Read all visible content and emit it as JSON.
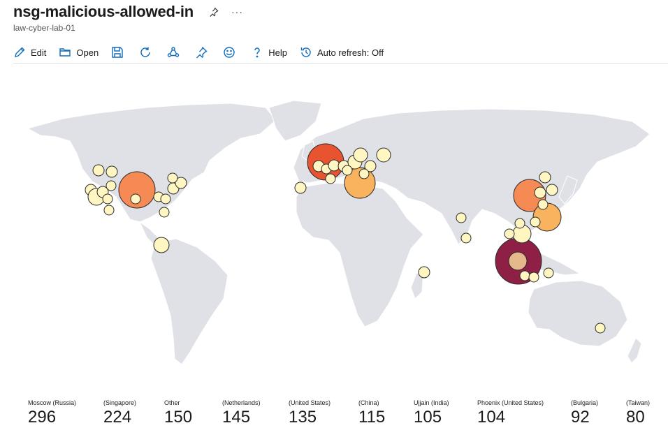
{
  "header": {
    "title": "nsg-malicious-allowed-in",
    "subtitle": "law-cyber-lab-01",
    "more_label": "···"
  },
  "toolbar": {
    "edit_label": "Edit",
    "open_label": "Open",
    "help_label": "Help",
    "auto_refresh_label": "Auto refresh: Off"
  },
  "icons": {
    "pin": "pin-icon",
    "more": "more-icon",
    "edit": "edit-icon",
    "open": "open-icon",
    "save": "save-icon",
    "refresh": "refresh-icon",
    "share": "share-icon",
    "feedback": "smiley-icon",
    "help": "help-icon",
    "history": "history-icon"
  },
  "colors": {
    "accent": "#0f6cbd",
    "land": "#dfe1e6",
    "bubble_low": "#fff6c2",
    "bubble_mid": "#f9b25e",
    "bubble_high": "#e8542f",
    "bubble_max": "#8e1f45"
  },
  "stats": [
    {
      "label": "Moscow (Russia)",
      "value": "296"
    },
    {
      "label": "(Singapore)",
      "value": "224"
    },
    {
      "label": "Other",
      "value": "150"
    },
    {
      "label": "(Netherlands)",
      "value": "145"
    },
    {
      "label": "(United States)",
      "value": "135"
    },
    {
      "label": "(China)",
      "value": "115"
    },
    {
      "label": "Ujjain (India)",
      "value": "105"
    },
    {
      "label": "Phoenix (United States)",
      "value": "104"
    },
    {
      "label": "(Bulgaria)",
      "value": "92"
    },
    {
      "label": "(Taiwan)",
      "value": "80"
    }
  ]
}
